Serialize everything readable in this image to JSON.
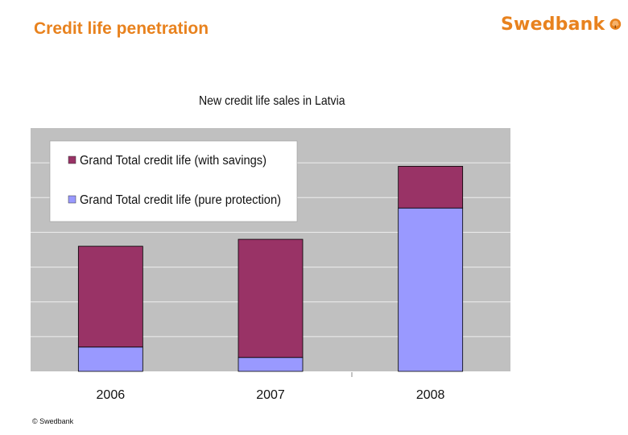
{
  "slide": {
    "title": "Credit life penetration",
    "footer": "© Swedbank"
  },
  "logo": {
    "text": "Swedbank",
    "icon": "swedbank-oak-tree-icon",
    "color": "#e8821e"
  },
  "chart_data": {
    "type": "bar",
    "stacked": true,
    "title": "New credit life sales in Latvia",
    "categories": [
      "2006",
      "2007",
      "2008"
    ],
    "series": [
      {
        "name": "Grand Total credit life (pure protection)",
        "color": "#9999ff",
        "values": [
          0.7,
          0.4,
          4.7
        ]
      },
      {
        "name": "Grand Total credit life (with savings)",
        "color": "#993366",
        "values": [
          2.9,
          3.4,
          1.2
        ]
      }
    ],
    "ylim": [
      0,
      7
    ],
    "y_tick_labels_visible": false,
    "grid": true,
    "plot_background": "#c0c0c0",
    "legend": "top-left inside plot",
    "xlabel": "",
    "ylabel": ""
  }
}
